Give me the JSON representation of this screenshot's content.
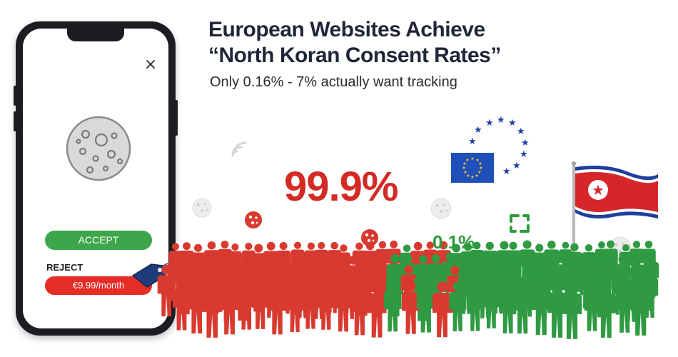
{
  "headline": {
    "line1": "European Websites Achieve",
    "line2": "“North Koran Consent Rates”",
    "subtitle": "Only 0.16% - 7% actually want tracking"
  },
  "stats": {
    "reject_rate": "99.9%",
    "accept_rate": "0.1%"
  },
  "phone": {
    "close_icon": "×",
    "accept_label": "ACCEPT",
    "reject_label": "REJECT",
    "reject_price": "€9.99/month",
    "icons": [
      "close-icon",
      "cookie-icon",
      "price-tag-icon"
    ]
  },
  "decor": {
    "icons": [
      "wifi-signal-icon",
      "eu-flag-icon",
      "eu-star-ring-icon",
      "north-korea-flag-icon",
      "refresh-icon",
      "cookie-icon"
    ]
  },
  "colors": {
    "accept": "#3ea64a",
    "reject": "#e52d27",
    "crowd_red": "#d93a30",
    "crowd_green": "#2f9a42",
    "title": "#1e2638"
  }
}
